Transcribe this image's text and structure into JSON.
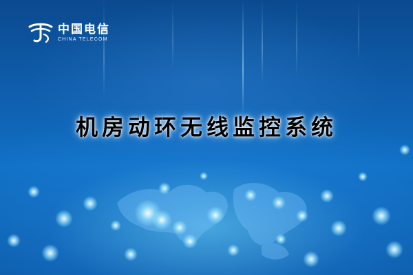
{
  "brand": {
    "name_cn": "中国电信",
    "name_en": "CHINA TELECOM",
    "logo_icon": "china-telecom-logo-icon"
  },
  "title": "机房动环无线监控系统",
  "colors": {
    "background_top": "#0b4a8f",
    "background_glow": "#78dcff",
    "title_text": "#000000",
    "logo_text": "#ffffff"
  }
}
